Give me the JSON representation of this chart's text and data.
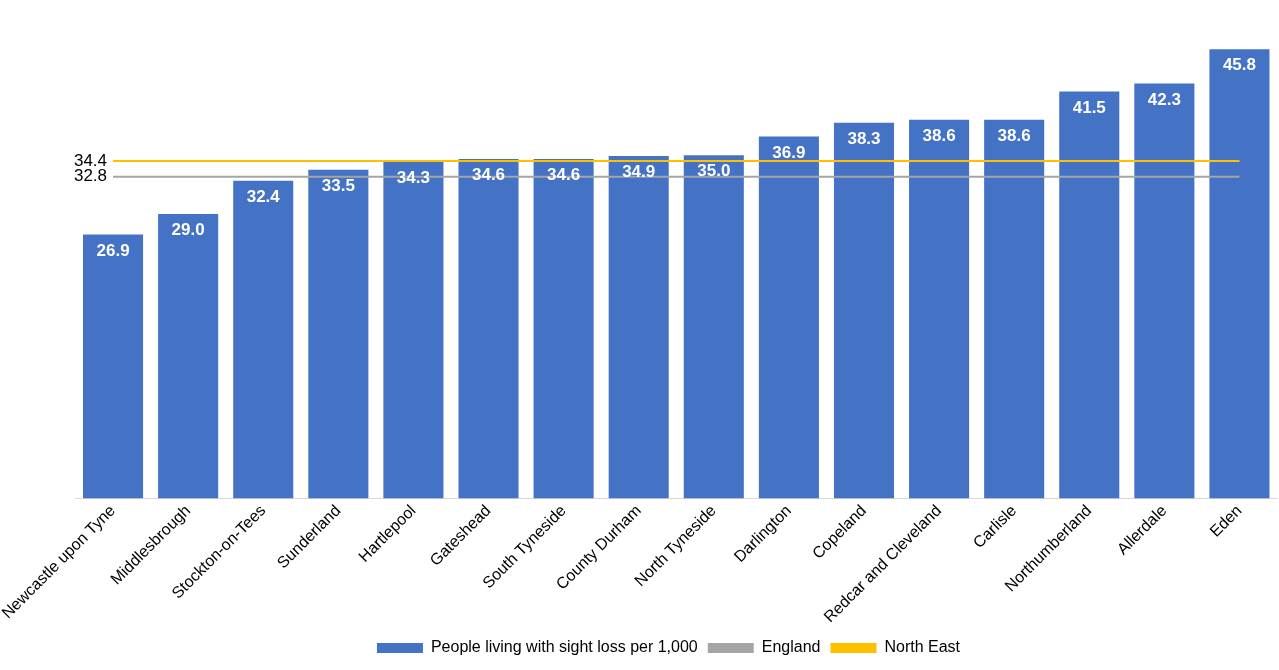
{
  "chart_data": {
    "type": "bar",
    "categories": [
      "Newcastle upon Tyne",
      "Middlesbrough",
      "Stockton-on-Tees",
      "Sunderland",
      "Hartlepool",
      "Gateshead",
      "South Tyneside",
      "County Durham",
      "North Tyneside",
      "Darlington",
      "Copeland",
      "Redcar and Cleveland",
      "Carlisle",
      "Northumberland",
      "Allerdale",
      "Eden"
    ],
    "series": [
      {
        "name": "People living with sight loss per 1,000",
        "color": "#4472c4",
        "values": [
          26.9,
          29.0,
          32.4,
          33.5,
          34.3,
          34.6,
          34.6,
          34.9,
          35.0,
          36.9,
          38.3,
          38.6,
          38.6,
          41.5,
          42.3,
          45.8
        ],
        "value_labels": [
          "26.9",
          "29.0",
          "32.4",
          "33.5",
          "34.3",
          "34.6",
          "34.6",
          "34.9",
          "35.0",
          "36.9",
          "38.3",
          "38.6",
          "38.6",
          "41.5",
          "42.3",
          "45.8"
        ]
      },
      {
        "name": "England",
        "type": "line",
        "color": "#a5a5a5",
        "values": [
          32.8,
          32.8,
          32.8,
          32.8,
          32.8,
          32.8,
          32.8,
          32.8,
          32.8,
          32.8,
          32.8,
          32.8,
          32.8,
          32.8,
          32.8,
          32.8
        ],
        "value_labels": [
          "32.8",
          null,
          null,
          null,
          null,
          null,
          null,
          null,
          null,
          null,
          null,
          null,
          null,
          null,
          null,
          null
        ]
      },
      {
        "name": "North East",
        "type": "line",
        "color": "#ffc000",
        "values": [
          34.4,
          34.4,
          34.4,
          34.4,
          34.4,
          34.4,
          34.4,
          34.4,
          34.4,
          34.4,
          34.4,
          34.4,
          34.4,
          34.4,
          34.4,
          34.4
        ],
        "value_labels": [
          "34.4",
          null,
          null,
          null,
          null,
          null,
          null,
          null,
          null,
          null,
          null,
          null,
          null,
          null,
          null,
          null
        ]
      }
    ],
    "grid": false,
    "legend": "bottom",
    "tick_labels": "x",
    "marker": "none"
  }
}
